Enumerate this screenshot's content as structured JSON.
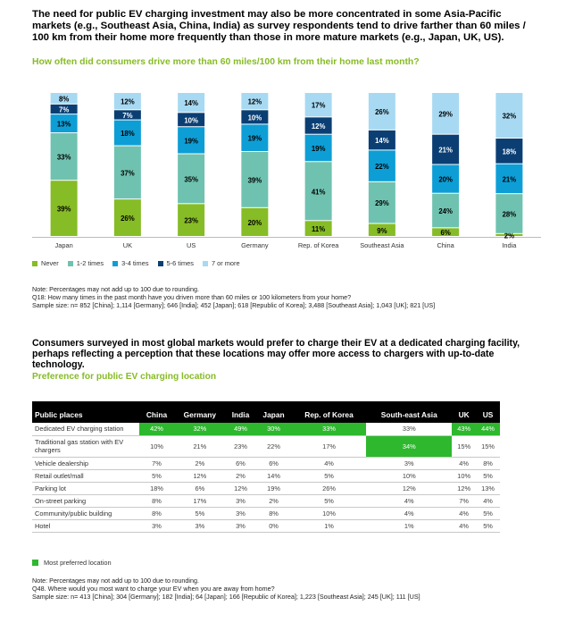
{
  "headline": "The need for public EV charging investment may also be more concentrated in some Asia-Pacific markets (e.g., Southeast Asia, China, India) as survey respondents tend to drive farther than 60 miles / 100 km from their home more frequently than those in more mature markets (e.g., Japan, UK, US).",
  "chart_subtitle": "How often did consumers drive more than 60 miles/100 km from their home last month?",
  "chart_data": {
    "type": "bar",
    "stacked": true,
    "percent_scale": true,
    "categories": [
      "Japan",
      "UK",
      "US",
      "Germany",
      "Rep. of Korea",
      "Southeast Asia",
      "China",
      "India"
    ],
    "series": [
      {
        "name": "Never",
        "color": "#86bc25",
        "label_color": "#000000",
        "values": [
          39,
          26,
          23,
          20,
          11,
          9,
          6,
          2
        ]
      },
      {
        "name": "1-2 times",
        "color": "#6fc2b0",
        "label_color": "#000000",
        "values": [
          33,
          37,
          35,
          39,
          41,
          29,
          24,
          28
        ]
      },
      {
        "name": "3-4 times",
        "color": "#0e9ed6",
        "label_color": "#000000",
        "values": [
          13,
          18,
          19,
          19,
          19,
          22,
          20,
          21
        ]
      },
      {
        "name": "5-6 times",
        "color": "#0b3f74",
        "label_color": "#ffffff",
        "values": [
          7,
          7,
          10,
          10,
          12,
          14,
          21,
          18
        ]
      },
      {
        "name": "7 or more",
        "color": "#a7d9f2",
        "label_color": "#000000",
        "values": [
          8,
          12,
          14,
          12,
          17,
          26,
          29,
          32
        ]
      }
    ],
    "legend_position": "bottom-left",
    "grid": false
  },
  "notes1": {
    "line1": "Note: Percentages may not add up to 100 due to rounding.",
    "line2": "Q18: How many times in the past month have you driven more than 60 miles or 100 kilometers from your home?",
    "line3": "Sample size: n= 852 [China]; 1,114 [Germany]; 646 [India]; 452 [Japan]; 618 [Republic of Korea]; 3,488 [Southeast Asia]; 1,043 [UK]; 821 [US]"
  },
  "headline2": "Consumers surveyed in most global markets would prefer to charge their EV at a dedicated charging facility, perhaps reflecting a perception that these locations may offer more access to chargers with up-to-date technology.",
  "table_subtitle": "Preference for public EV charging location",
  "table": {
    "highlight_color": "#2eb82e",
    "headers": [
      "Public places",
      "China",
      "Germany",
      "India",
      "Japan",
      "Rep. of Korea",
      "South-east Asia",
      "UK",
      "US"
    ],
    "rows": [
      {
        "label": "Dedicated EV charging station",
        "values": [
          "42%",
          "32%",
          "49%",
          "30%",
          "33%",
          "33%",
          "43%",
          "44%"
        ],
        "highlight": [
          true,
          true,
          true,
          true,
          true,
          false,
          true,
          true
        ]
      },
      {
        "label": "Traditional gas station with EV chargers",
        "values": [
          "10%",
          "21%",
          "23%",
          "22%",
          "17%",
          "34%",
          "15%",
          "15%"
        ],
        "highlight": [
          false,
          false,
          false,
          false,
          false,
          true,
          false,
          false
        ]
      },
      {
        "label": "Vehicle dealership",
        "values": [
          "7%",
          "2%",
          "6%",
          "6%",
          "4%",
          "3%",
          "4%",
          "8%"
        ],
        "highlight": [
          false,
          false,
          false,
          false,
          false,
          false,
          false,
          false
        ]
      },
      {
        "label": "Retail outlet/mall",
        "values": [
          "5%",
          "12%",
          "2%",
          "14%",
          "5%",
          "10%",
          "10%",
          "5%"
        ],
        "highlight": [
          false,
          false,
          false,
          false,
          false,
          false,
          false,
          false
        ]
      },
      {
        "label": "Parking lot",
        "values": [
          "18%",
          "6%",
          "12%",
          "19%",
          "26%",
          "12%",
          "12%",
          "13%"
        ],
        "highlight": [
          false,
          false,
          false,
          false,
          false,
          false,
          false,
          false
        ]
      },
      {
        "label": "On-street parking",
        "values": [
          "8%",
          "17%",
          "3%",
          "2%",
          "5%",
          "4%",
          "7%",
          "4%"
        ],
        "highlight": [
          false,
          false,
          false,
          false,
          false,
          false,
          false,
          false
        ]
      },
      {
        "label": "Community/public building",
        "values": [
          "8%",
          "5%",
          "3%",
          "8%",
          "10%",
          "4%",
          "4%",
          "5%"
        ],
        "highlight": [
          false,
          false,
          false,
          false,
          false,
          false,
          false,
          false
        ]
      },
      {
        "label": "Hotel",
        "values": [
          "3%",
          "3%",
          "3%",
          "0%",
          "1%",
          "1%",
          "4%",
          "5%"
        ],
        "highlight": [
          false,
          false,
          false,
          false,
          false,
          false,
          false,
          false
        ]
      }
    ]
  },
  "table_legend": "Most preferred location",
  "notes2": {
    "line1": "Note: Percentages may not add up to 100 due to rounding.",
    "line2": "Q48. Where would you most want to charge your EV when you are away from home?",
    "line3": "Sample size: n= 413 [China]; 304 [Germany]; 182 [India]; 64 [Japan]; 166 [Republic of Korea]; 1,223 [Southeast Asia]; 245 [UK]; 111 [US]"
  }
}
